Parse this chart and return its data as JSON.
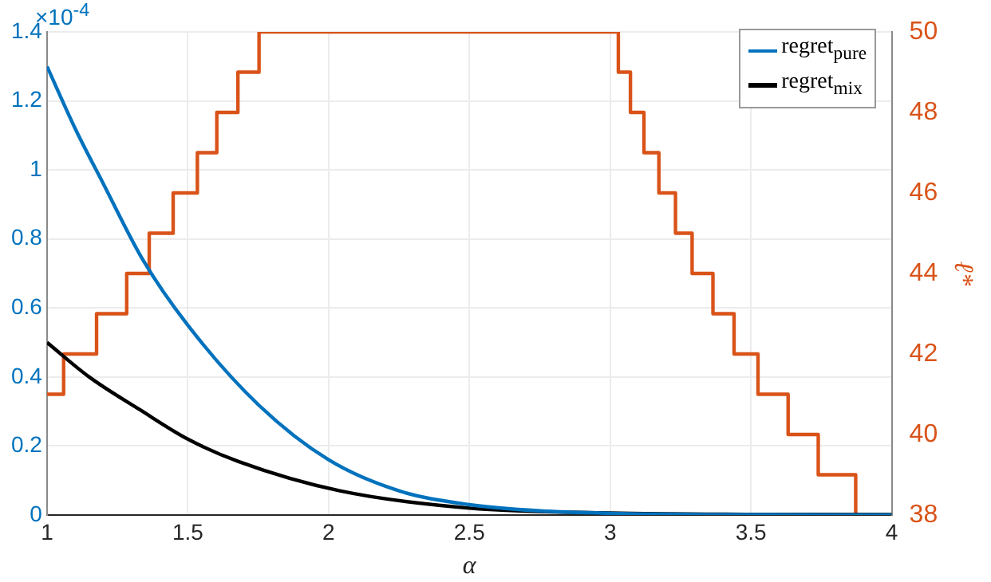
{
  "chart_data": {
    "type": "line",
    "xlabel": "α",
    "y2label": "ℓ*",
    "annotations": [
      "×10$^{-4}$"
    ],
    "xlim": [
      1,
      4
    ],
    "xticks": [
      1,
      1.5,
      2,
      2.5,
      3,
      3.5,
      4
    ],
    "ylim": [
      0,
      1.4
    ],
    "yticks": [
      0,
      0.2,
      0.4,
      0.6,
      0.8,
      1,
      1.2,
      1.4
    ],
    "y2lim": [
      38,
      50
    ],
    "y2ticks": [
      38,
      40,
      42,
      44,
      46,
      48,
      50
    ],
    "grid": true,
    "legend": "top right",
    "marker": "none",
    "line_style": "solid",
    "series": [
      {
        "name": "regret$_{pure}$",
        "color": "#0072bd",
        "x": [
          1,
          1.1,
          1.2,
          1.34,
          1.5,
          1.75,
          2,
          2.25,
          2.5,
          2.75,
          3,
          3.5,
          4
        ],
        "values": [
          1.3,
          1.12,
          0.96,
          0.74,
          0.55,
          0.32,
          0.16,
          0.07,
          0.03,
          0.012,
          0.005,
          0.001,
          0
        ]
      },
      {
        "name": "regret$_{mix}$",
        "color": "#000000",
        "x": [
          1,
          1.15,
          1.33,
          1.5,
          1.68,
          2.04,
          2.5,
          3,
          3.5,
          4
        ],
        "values": [
          0.5,
          0.4,
          0.305,
          0.22,
          0.155,
          0.07,
          0.02,
          0.006,
          0.002,
          0.001
        ]
      },
      {
        "type": "step",
        "axis": "y2",
        "color": "#d95319",
        "x": [
          1,
          1.059,
          1.176,
          1.283,
          1.363,
          1.448,
          1.534,
          1.603,
          1.678,
          1.753,
          3.029,
          3.072,
          3.12,
          3.173,
          3.232,
          3.291,
          3.365,
          3.44,
          3.525,
          3.632,
          3.739,
          3.872,
          4
        ],
        "values": [
          41,
          42,
          43,
          44,
          45,
          46,
          47,
          48,
          49,
          50,
          49,
          48,
          47,
          46,
          45,
          44,
          43,
          42,
          41,
          40,
          39,
          38,
          38
        ]
      }
    ]
  }
}
